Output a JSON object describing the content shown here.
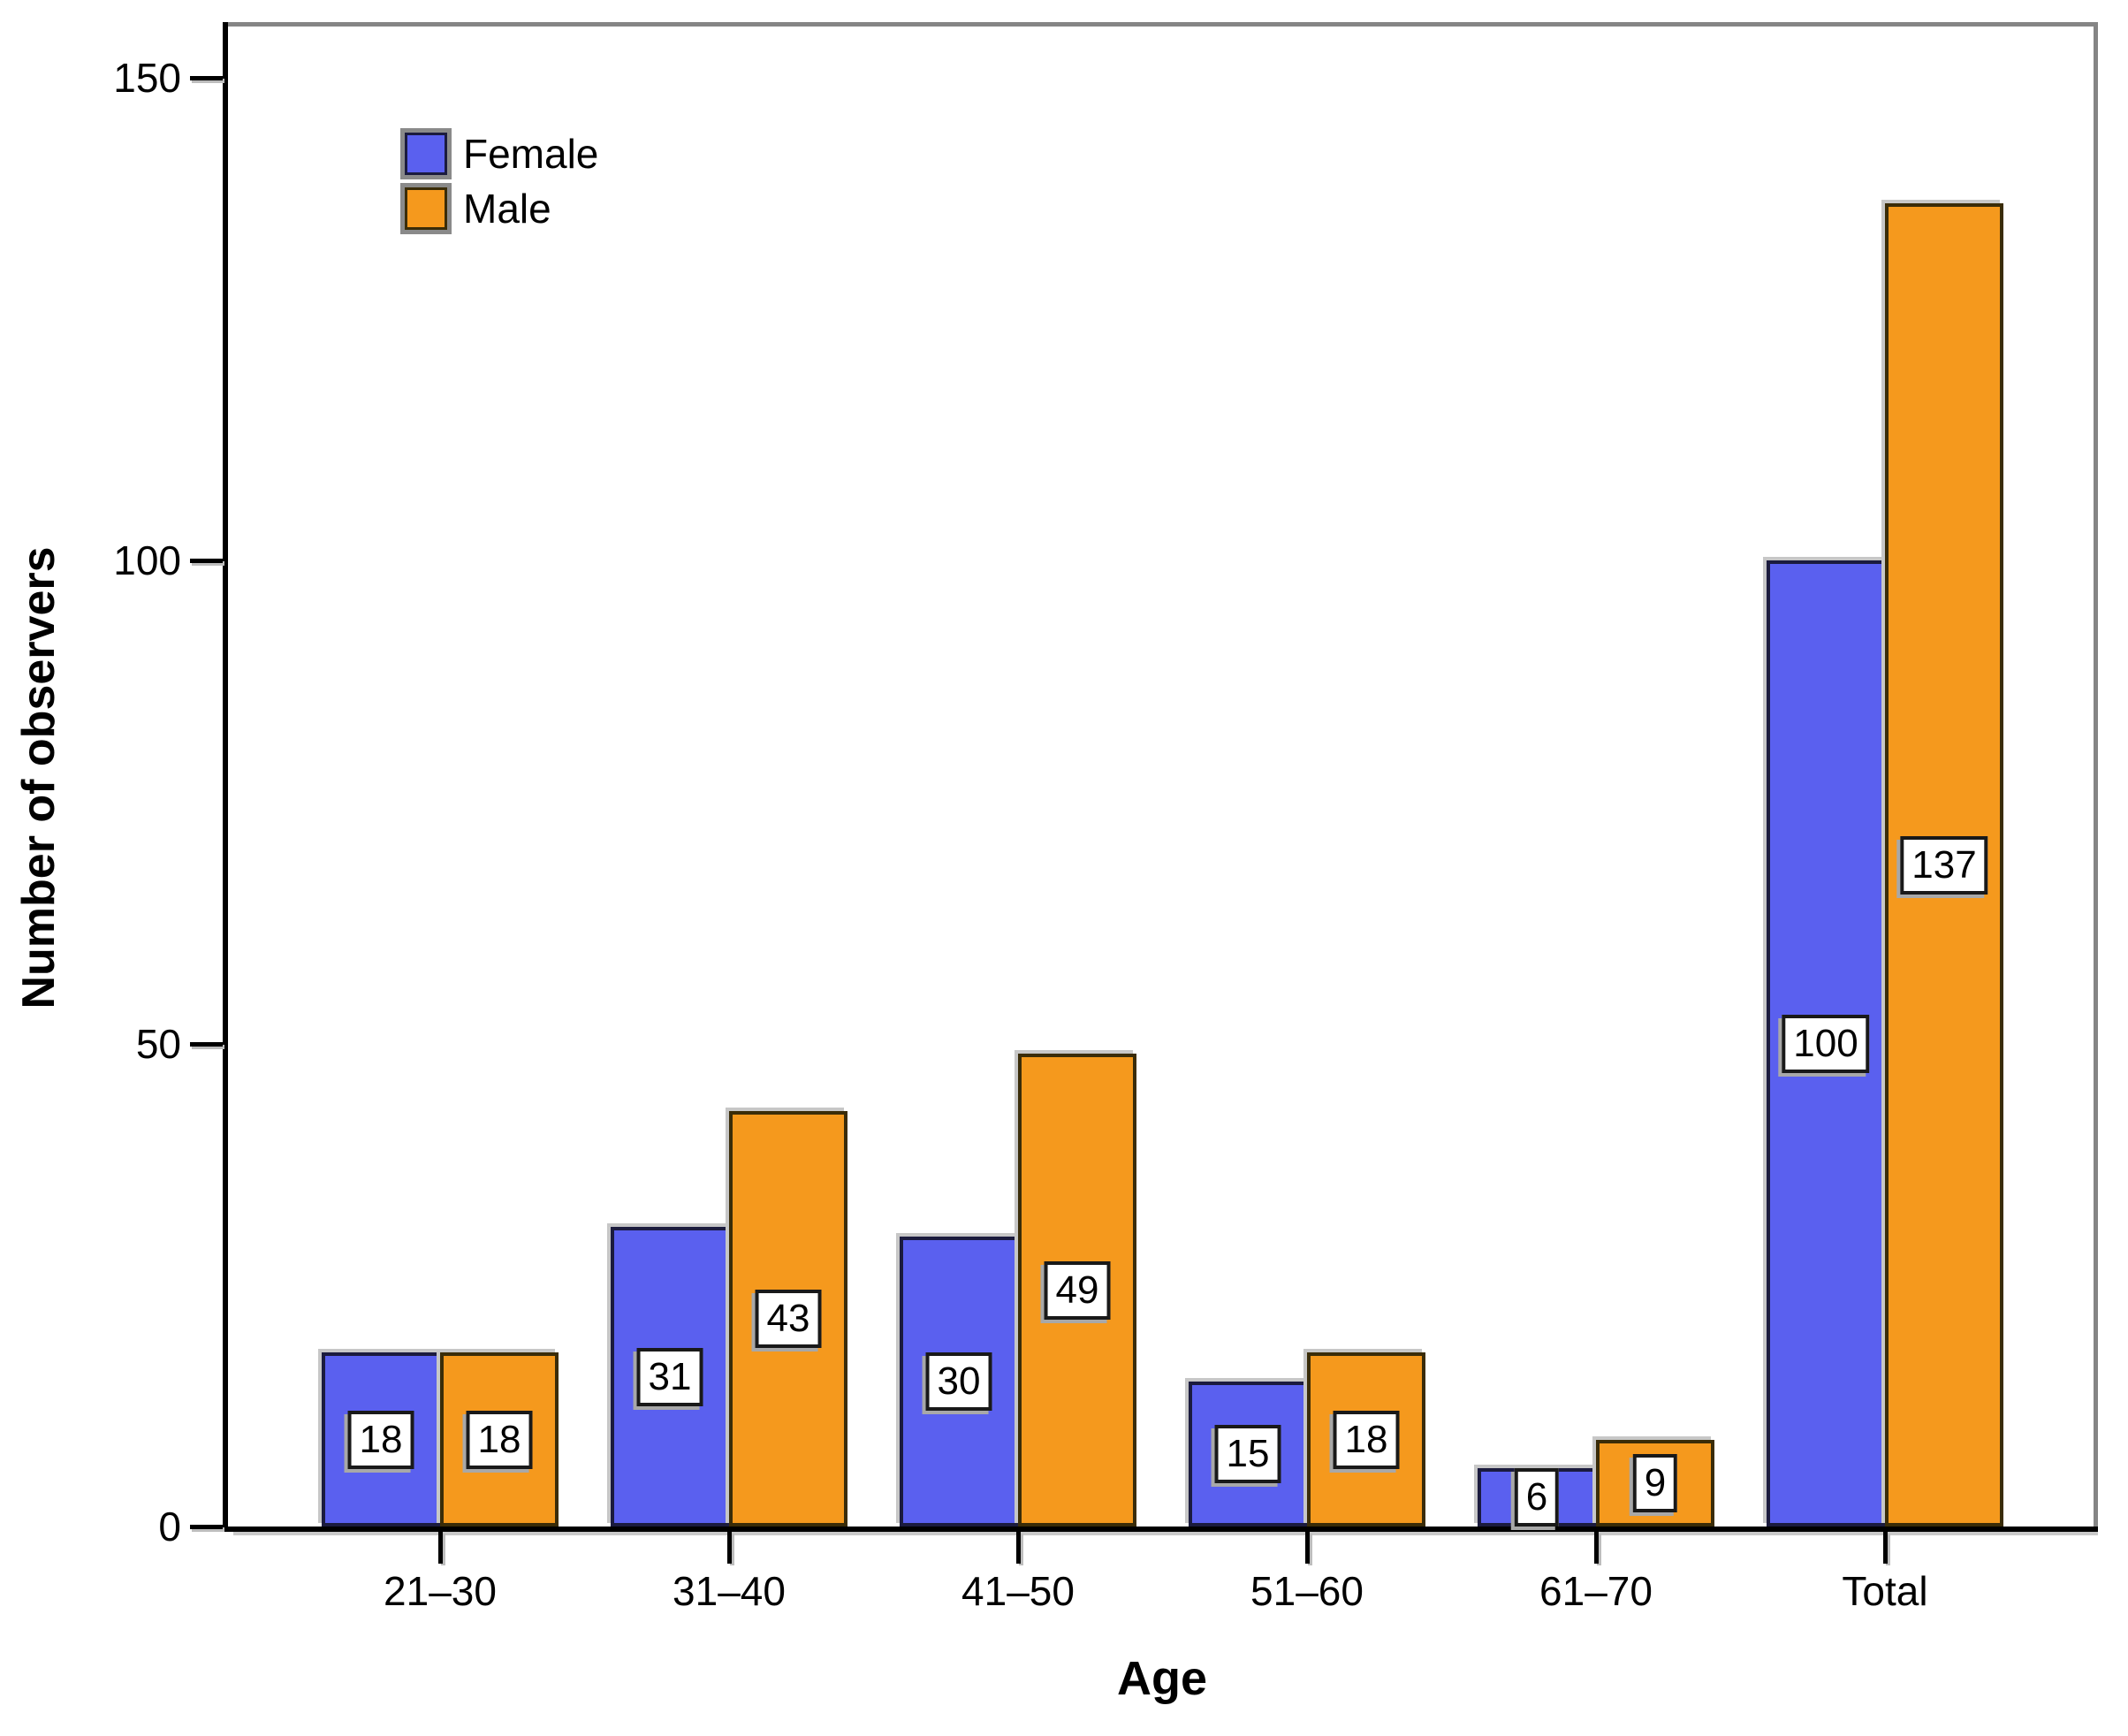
{
  "chart_data": {
    "type": "bar",
    "title": "",
    "xlabel": "Age",
    "ylabel": "Number of observers",
    "categories": [
      "21–30",
      "31–40",
      "41–50",
      "51–60",
      "61–70",
      "Total"
    ],
    "series": [
      {
        "name": "Female",
        "color": "#5A60EF",
        "border_color": "#1b1b3e",
        "values": [
          18,
          31,
          30,
          15,
          6,
          100
        ]
      },
      {
        "name": "Male",
        "color": "#F5991D",
        "border_color": "#3a2c08",
        "values": [
          18,
          43,
          49,
          18,
          9,
          137
        ]
      }
    ],
    "ylim": [
      0,
      150
    ],
    "yticks": [
      0,
      50,
      100,
      150
    ],
    "show_value_labels": true,
    "legend_position": "top-left",
    "grid": false,
    "frame_color": "#858585",
    "axis_color": "#000000",
    "value_box_bg": "#ffffff"
  }
}
